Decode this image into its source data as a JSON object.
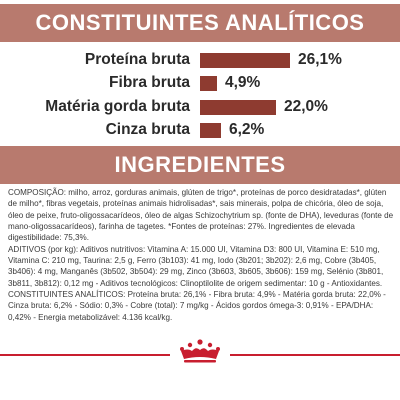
{
  "analytics": {
    "heading": "CONSTITUINTES ANALÍTICOS",
    "items": [
      {
        "label": "Proteína bruta",
        "value": "26,1%",
        "percent": 26.1
      },
      {
        "label": "Fibra bruta",
        "value": "4,9%",
        "percent": 4.9
      },
      {
        "label": "Matéria gorda bruta",
        "value": "22,0%",
        "percent": 22.0
      },
      {
        "label": "Cinza bruta",
        "value": "6,2%",
        "percent": 6.2
      }
    ]
  },
  "ingredients": {
    "heading": "INGREDIENTES",
    "composition": "COMPOSIÇÃO: milho, arroz, gorduras animais, glúten de trigo*, proteínas de porco desidratadas*, glúten de milho*, fibras vegetais, proteínas animais hidrolisadas*, sais minerais, polpa de chicória, óleo de soja, óleo de peixe, fruto-oligossacarídeos, óleo de algas Schizochytrium sp. (fonte de DHA), leveduras (fonte de mano-oligossacarídeos), farinha de tagetes. *Fontes de proteínas: 27%. Ingredientes de elevada digestibilidade: 75,3%.",
    "additives": "ADITIVOS (por kg): Aditivos nutritivos: Vitamina A: 15.000 UI, Vitamina D3: 800 UI, Vitamina E: 510 mg, Vitamina C: 210 mg, Taurina: 2,5 g, Ferro (3b103): 41 mg, Iodo (3b201; 3b202): 2,6 mg, Cobre (3b405, 3b406): 4 mg, Manganês (3b502, 3b504): 29 mg, Zinco (3b603, 3b605, 3b606): 159 mg, Selénio (3b801, 3b811, 3b812): 0,12 mg - Aditivos tecnológicos: Clinoptilolite de origem sedimentar: 10 g - Antioxidantes.",
    "constituents": "CONSTITUINTES ANALÍTICOS: Proteína bruta: 26,1% - Fibra bruta: 4,9% - Matéria gorda bruta: 22,0% - Cinza bruta: 6,2% - Sódio: 0,3% - Cobre (total): 7 mg/kg - Ácidos gordos ómega-3: 0,91% - EPA/DHA: 0,42% - Energia metabolizável: 4.136 kcal/kg."
  },
  "colors": {
    "banner": "#b87a6e",
    "bar": "#8e3b30",
    "footer_rule": "#c81e2f"
  },
  "footer": {
    "logo": "royal-canin-crown-logo"
  }
}
